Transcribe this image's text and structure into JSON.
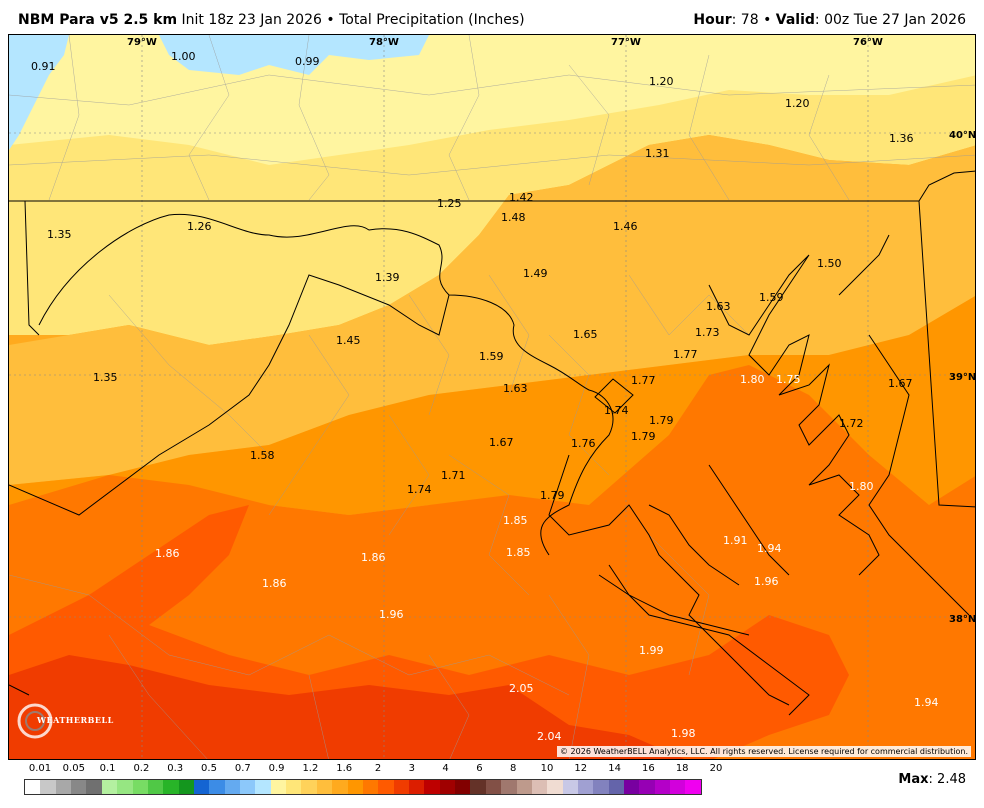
{
  "header": {
    "model": "NBM Para v5 2.5 km",
    "init": "Init 18z 23 Jan 2026",
    "bullet": "•",
    "product": "Total Precipitation (Inches)",
    "hour_label": "Hour",
    "hour_value": ": 78",
    "valid_label": "Valid",
    "valid_value": ": 00z Tue 27 Jan 2026"
  },
  "map": {
    "longitude_labels": [
      "79°W",
      "78°W",
      "77°W",
      "76°W"
    ],
    "latitude_labels": [
      "40°N",
      "39°N",
      "38°N"
    ],
    "values": [
      {
        "v": "0.91",
        "c": "#000"
      },
      {
        "v": "1.00",
        "c": "#000"
      },
      {
        "v": "0.99",
        "c": "#000"
      },
      {
        "v": "1.20",
        "c": "#000"
      },
      {
        "v": "1.20",
        "c": "#000"
      },
      {
        "v": "1.36",
        "c": "#000"
      },
      {
        "v": "1.31",
        "c": "#000"
      },
      {
        "v": "1.42",
        "c": "#000"
      },
      {
        "v": "1.25",
        "c": "#000"
      },
      {
        "v": "1.48",
        "c": "#000"
      },
      {
        "v": "1.46",
        "c": "#000"
      },
      {
        "v": "1.35",
        "c": "#000"
      },
      {
        "v": "1.26",
        "c": "#000"
      },
      {
        "v": "1.39",
        "c": "#000"
      },
      {
        "v": "1.49",
        "c": "#000"
      },
      {
        "v": "1.50",
        "c": "#000"
      },
      {
        "v": "1.59",
        "c": "#000"
      },
      {
        "v": "1.63",
        "c": "#000"
      },
      {
        "v": "1.73",
        "c": "#000"
      },
      {
        "v": "1.65",
        "c": "#000"
      },
      {
        "v": "1.45",
        "c": "#000"
      },
      {
        "v": "1.59",
        "c": "#000"
      },
      {
        "v": "1.77",
        "c": "#000"
      },
      {
        "v": "1.35",
        "c": "#000"
      },
      {
        "v": "1.63",
        "c": "#000"
      },
      {
        "v": "1.77",
        "c": "#000"
      },
      {
        "v": "1.80",
        "c": "#fff"
      },
      {
        "v": "1.75",
        "c": "#fff"
      },
      {
        "v": "1.67",
        "c": "#000"
      },
      {
        "v": "1.74",
        "c": "#000"
      },
      {
        "v": "1.79",
        "c": "#000"
      },
      {
        "v": "1.72",
        "c": "#000"
      },
      {
        "v": "1.79",
        "c": "#000"
      },
      {
        "v": "1.67",
        "c": "#000"
      },
      {
        "v": "1.76",
        "c": "#000"
      },
      {
        "v": "1.58",
        "c": "#000"
      },
      {
        "v": "1.71",
        "c": "#000"
      },
      {
        "v": "1.74",
        "c": "#000"
      },
      {
        "v": "1.80",
        "c": "#fff"
      },
      {
        "v": "1.79",
        "c": "#000"
      },
      {
        "v": "1.85",
        "c": "#fff"
      },
      {
        "v": "1.91",
        "c": "#fff"
      },
      {
        "v": "1.94",
        "c": "#fff"
      },
      {
        "v": "1.86",
        "c": "#fff"
      },
      {
        "v": "1.86",
        "c": "#fff"
      },
      {
        "v": "1.85",
        "c": "#fff"
      },
      {
        "v": "1.96",
        "c": "#fff"
      },
      {
        "v": "1.86",
        "c": "#fff"
      },
      {
        "v": "1.96",
        "c": "#fff"
      },
      {
        "v": "1.99",
        "c": "#fff"
      },
      {
        "v": "2.05",
        "c": "#fff"
      },
      {
        "v": "1.94",
        "c": "#fff"
      },
      {
        "v": "2.04",
        "c": "#fff"
      },
      {
        "v": "1.98",
        "c": "#fff"
      }
    ],
    "copyright": "© 2026 WeatherBELL Analytics, LLC. All rights reserved. License required for commercial distribution.",
    "logo_text": "WEATHERBELL"
  },
  "legend": {
    "labels": [
      "0.01",
      "0.05",
      "0.1",
      "0.2",
      "0.3",
      "0.5",
      "0.7",
      "0.9",
      "1.2",
      "1.6",
      "2",
      "3",
      "4",
      "6",
      "8",
      "10",
      "12",
      "14",
      "16",
      "18",
      "20"
    ],
    "colors": [
      "#ffffff",
      "#c8c8c8",
      "#a8a8a8",
      "#888888",
      "#707070",
      "#b4f0a0",
      "#96e682",
      "#78dc64",
      "#50c846",
      "#28b428",
      "#14961e",
      "#1464d2",
      "#3c8ce6",
      "#64aaf0",
      "#8cc8fa",
      "#b4e6ff",
      "#fff5a0",
      "#ffe678",
      "#ffd25a",
      "#ffbe3c",
      "#ffaa1e",
      "#ff9600",
      "#ff7800",
      "#ff5a00",
      "#f03c00",
      "#dc1e00",
      "#be0000",
      "#a00000",
      "#820000",
      "#643228",
      "#825046",
      "#a0786e",
      "#be9a8c",
      "#dcbeb4",
      "#f0dcd2",
      "#c8c8e6",
      "#a0a0d2",
      "#8282be",
      "#6464aa",
      "#7800a0",
      "#9600b4",
      "#b400c8",
      "#d200dc",
      "#f000f0"
    ],
    "max_label": "Max",
    "max_value": ": 2.48"
  }
}
